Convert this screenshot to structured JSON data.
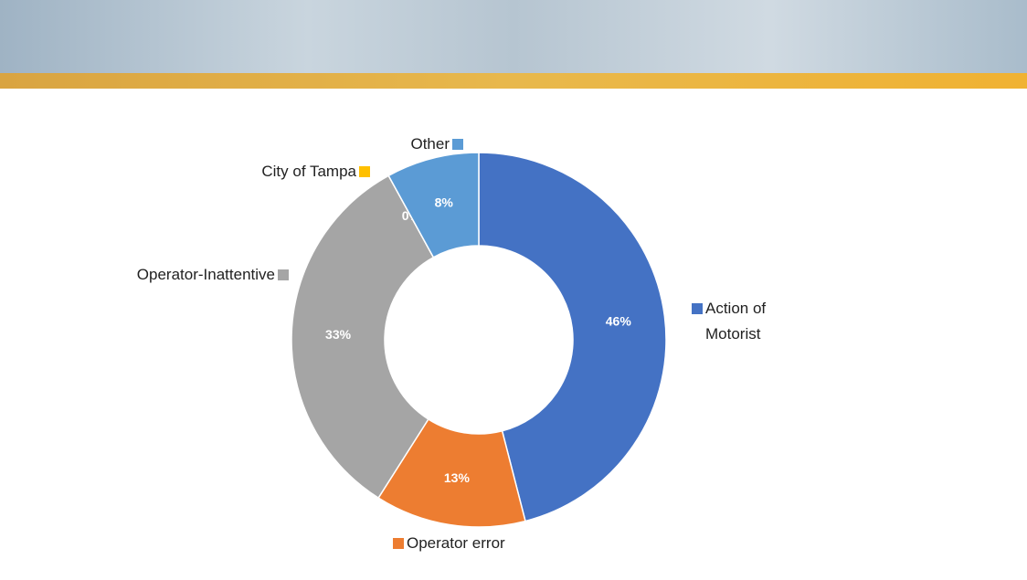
{
  "chart_data": {
    "type": "donut",
    "categories": [
      "Action of Motorist",
      "Operator error",
      "Operator-Inattentive",
      "City of Tampa",
      "Other"
    ],
    "values": [
      46,
      13,
      33,
      0,
      8
    ],
    "value_labels": [
      "46%",
      "13%",
      "33%",
      "0%",
      "8%"
    ],
    "colors": [
      "#4472c4",
      "#ed7d31",
      "#a5a5a5",
      "#ffc000",
      "#5b9bd5"
    ]
  }
}
